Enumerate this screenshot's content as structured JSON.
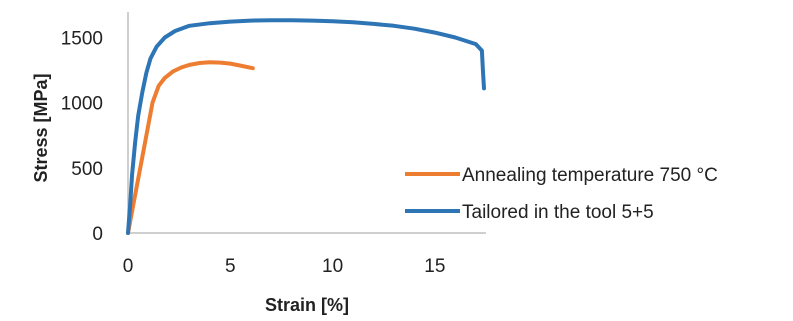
{
  "chart_data": {
    "type": "line",
    "title": "",
    "xlabel": "Strain [%]",
    "ylabel": "Stress [MPa]",
    "xlim": [
      0,
      17.5
    ],
    "ylim": [
      0,
      1650
    ],
    "xticks": [
      "0",
      "5",
      "10",
      "15"
    ],
    "xtick_values": [
      0,
      5,
      10,
      15
    ],
    "yticks": [
      "0",
      "500",
      "1000",
      "1500"
    ],
    "ytick_values": [
      0,
      500,
      1000,
      1500
    ],
    "grid": false,
    "legend_position": "right",
    "series": [
      {
        "name": "Annealing temperature 750 °C",
        "color": "#ED7D31",
        "x": [
          0,
          0.3,
          0.6,
          0.9,
          1.2,
          1.5,
          1.8,
          2.2,
          2.6,
          3.0,
          3.5,
          4.0,
          4.5,
          5.0,
          5.5,
          6.1
        ],
        "y": [
          0,
          250,
          500,
          750,
          1000,
          1130,
          1190,
          1240,
          1270,
          1290,
          1305,
          1310,
          1308,
          1300,
          1285,
          1265
        ]
      },
      {
        "name": "Tailored  in the tool 5+5",
        "color": "#2E75B6",
        "x": [
          0,
          0.1,
          0.2,
          0.35,
          0.5,
          0.7,
          0.9,
          1.1,
          1.4,
          1.8,
          2.3,
          3.0,
          4.0,
          5.0,
          6.0,
          7.0,
          8.0,
          9.0,
          10.0,
          11.0,
          12.0,
          13.0,
          14.0,
          15.0,
          16.0,
          17.0,
          17.3,
          17.35,
          17.4
        ],
        "y": [
          0,
          200,
          450,
          700,
          900,
          1080,
          1230,
          1340,
          1430,
          1500,
          1550,
          1590,
          1610,
          1622,
          1630,
          1632,
          1633,
          1630,
          1625,
          1617,
          1605,
          1590,
          1568,
          1538,
          1500,
          1450,
          1400,
          1250,
          1110
        ]
      }
    ]
  }
}
